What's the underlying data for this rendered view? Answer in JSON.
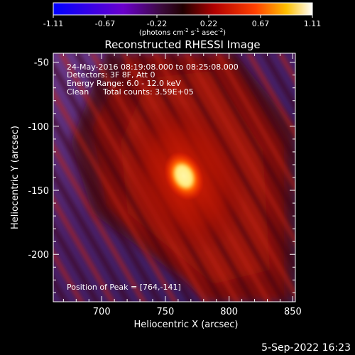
{
  "colorbar": {
    "ticks": [
      "-1.11",
      "-0.67",
      "-0.22",
      "0.22",
      "0.67",
      "1.11"
    ],
    "unit_parts": [
      "(photons cm",
      "-2",
      " s",
      "-1",
      " asec",
      "-2",
      ")"
    ]
  },
  "title": "Reconstructed RHESSI Image",
  "info": {
    "line1": "24-May-2016 08:19:08.000 to 08:25:08.000",
    "line2": "Detectors: 3F 8F, Att 0",
    "line3": "Energy Range: 6.0 - 12.0 keV",
    "line4_a": "Clean",
    "line4_b": "Total counts: 3.59E+05",
    "peak": "Position of Peak = [764,-141]"
  },
  "axes": {
    "xlabel": "Heliocentric X (arcsec)",
    "ylabel": "Heliocentric Y (arcsec)",
    "xticks": [
      "700",
      "750",
      "800",
      "850"
    ],
    "yticks": [
      "-50",
      "-100",
      "-150",
      "-200"
    ]
  },
  "footer": {
    "timestamp": "5-Sep-2022 16:23"
  },
  "chart_data": {
    "type": "heatmap",
    "title": "Reconstructed RHESSI Image",
    "xlabel": "Heliocentric X (arcsec)",
    "ylabel": "Heliocentric Y (arcsec)",
    "xlim": [
      662,
      852
    ],
    "ylim": [
      -237,
      -43
    ],
    "colorbar_range": [
      -1.11,
      1.11
    ],
    "colorbar_units": "photons cm^-2 s^-1 asec^-2",
    "colormap": [
      "#0000ff",
      "#ff00ff",
      "#ff0000",
      "#ffff00",
      "#ffffff"
    ],
    "peak_position": [
      764,
      -141
    ],
    "peak_value": 1.11,
    "grid": false
  }
}
